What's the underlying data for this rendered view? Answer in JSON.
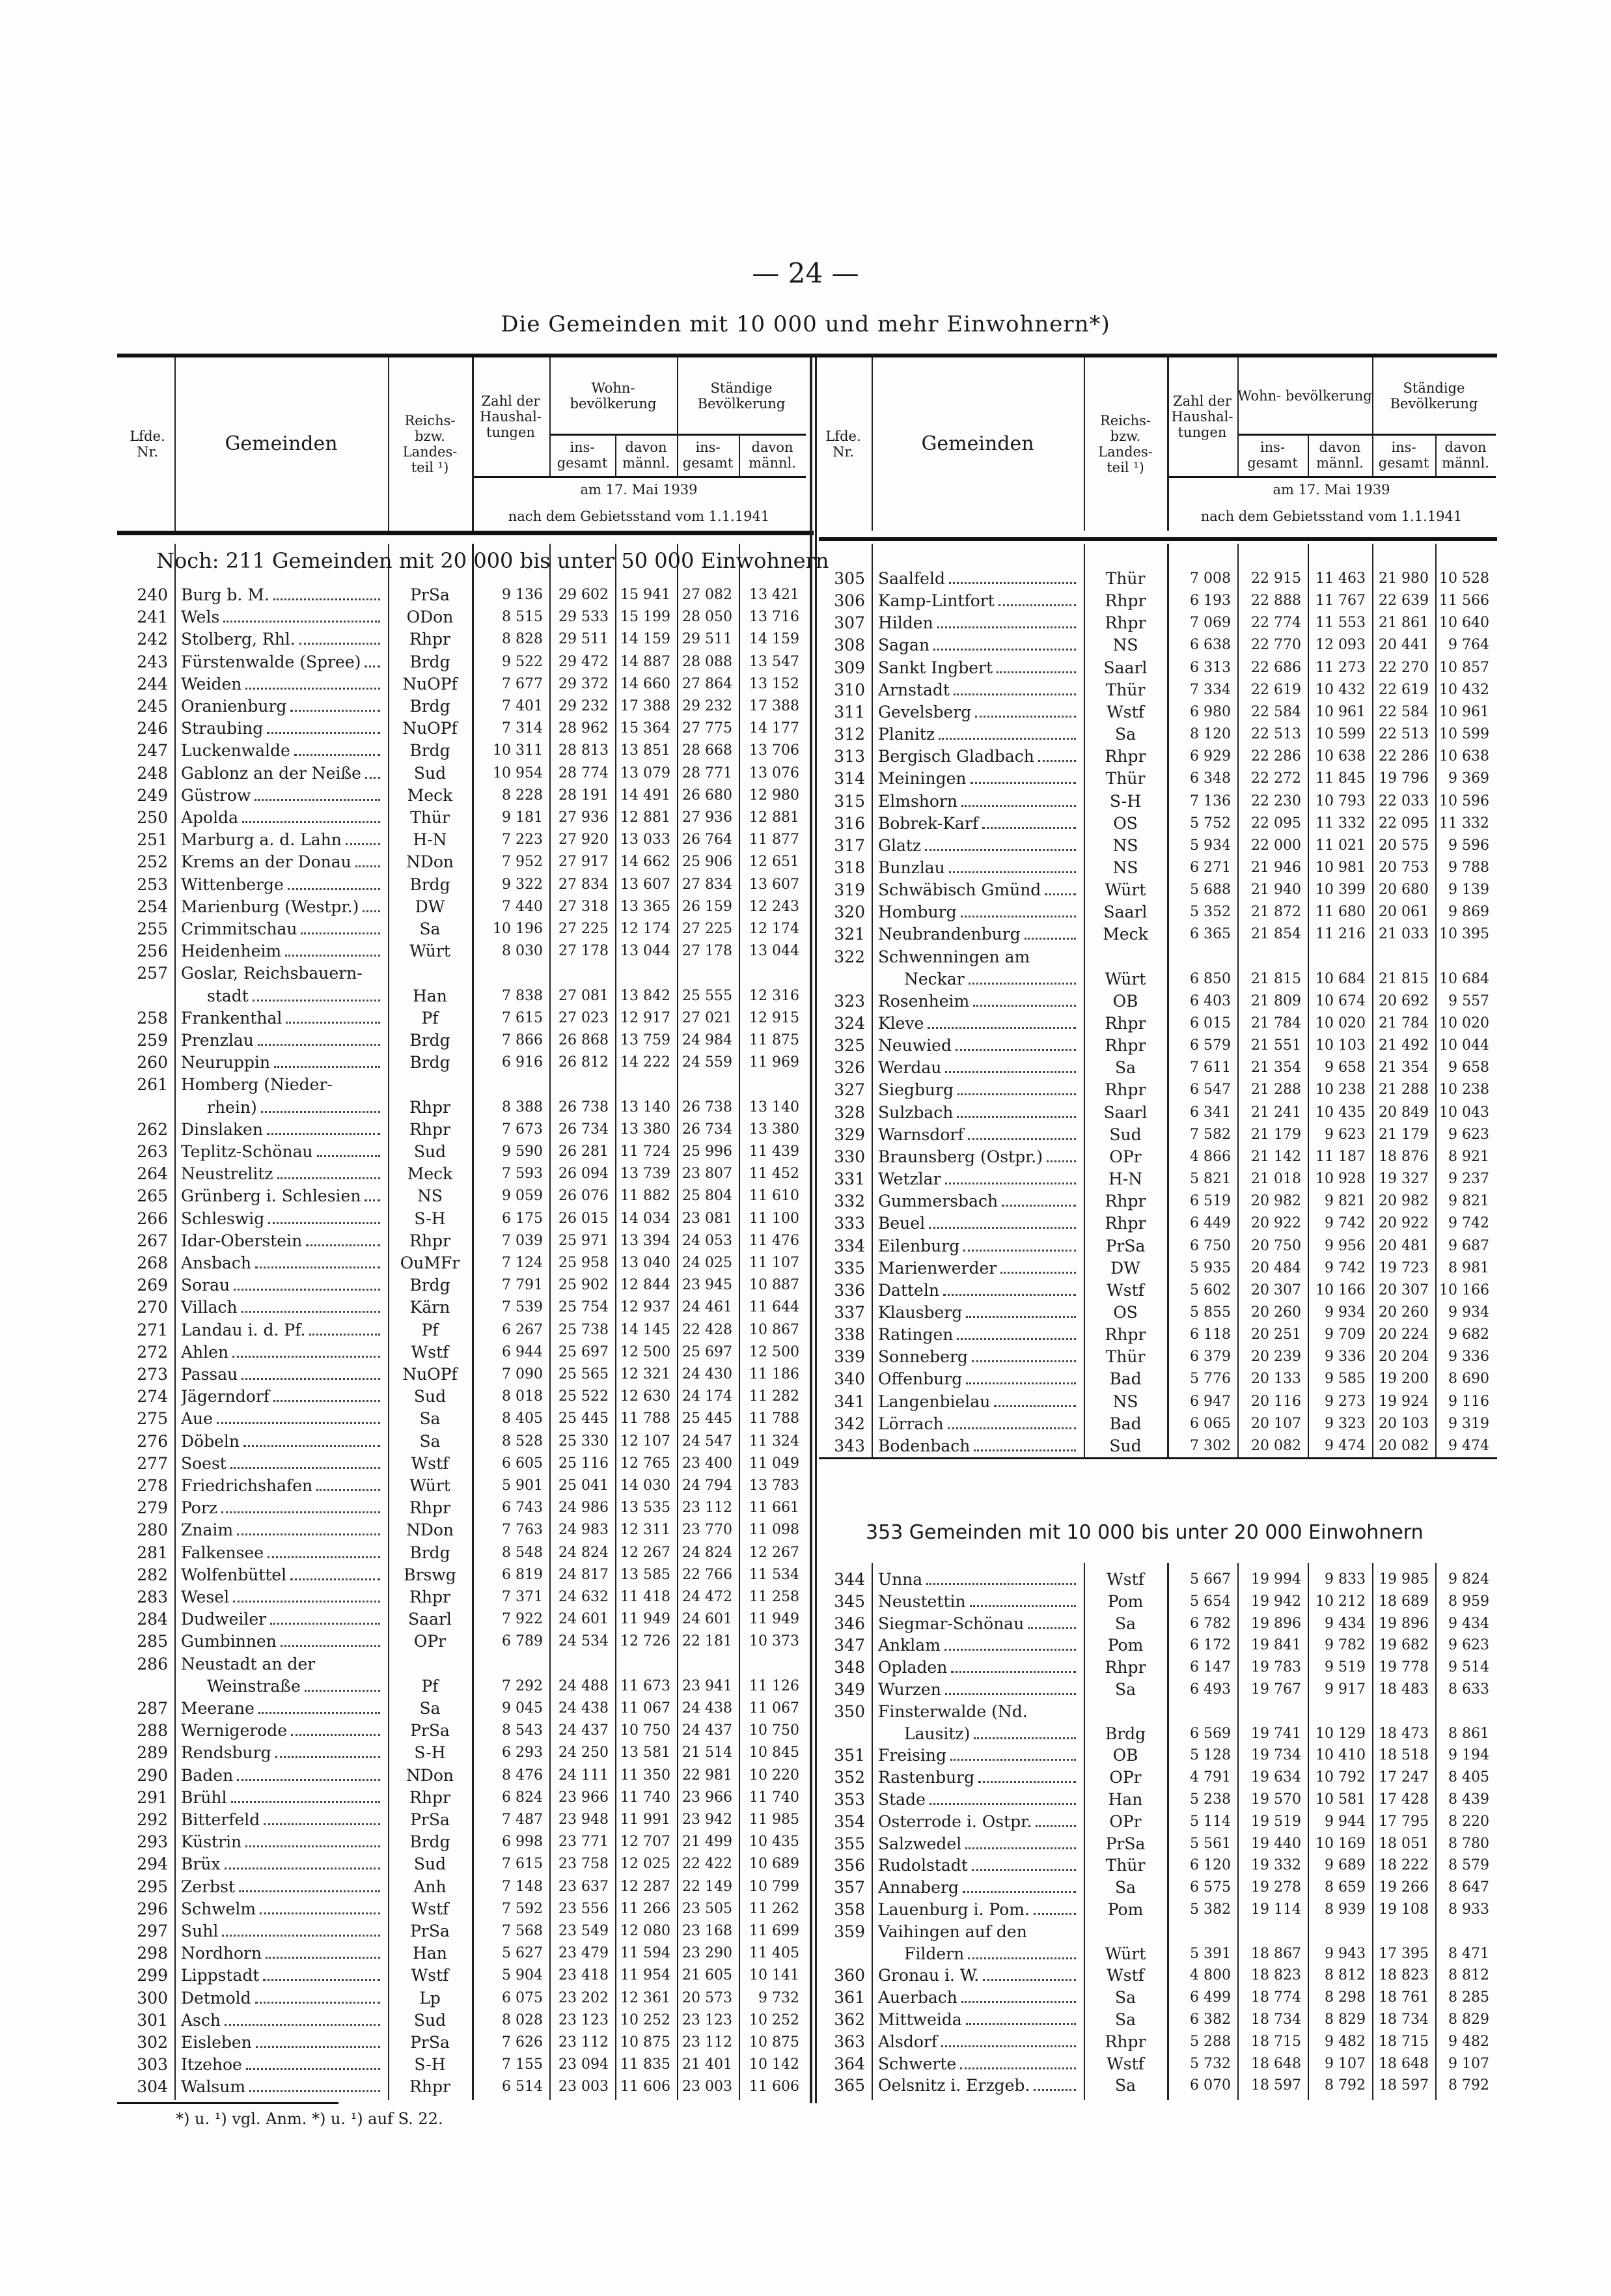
{
  "page_number": "— 24 —",
  "title": "Die Gemeinden mit 10 000 und mehr Einwohnern*)",
  "header": {
    "nr": "Lfde. Nr.",
    "gemeinden": "Gemeinden",
    "land": "Reichs- bzw. Landes- teil ¹)",
    "haushalt": "Zahl der Haushal- tungen",
    "wohn": "Wohn- bevölkerung",
    "staendig": "Ständige Bevölkerung",
    "insgesamt": "ins- gesamt",
    "maennl": "davon männl.",
    "date1": "am 17. Mai 1939",
    "date2": "nach dem Gebietsstand vom 1.1.1941"
  },
  "sections": {
    "s1": "Noch: 211 Gemeinden mit 20 000 bis unter 50 000 Einwohnern",
    "s2": "353 Gemeinden mit 10 000 bis unter 20 000 Einwohnern"
  },
  "left_rows": [
    [
      "240",
      "Burg b. M.",
      "PrSa",
      "9 136",
      "29 602",
      "15 941",
      "27 082",
      "13 421"
    ],
    [
      "241",
      "Wels",
      "ODon",
      "8 515",
      "29 533",
      "15 199",
      "28 050",
      "13 716"
    ],
    [
      "242",
      "Stolberg, Rhl.",
      "Rhpr",
      "8 828",
      "29 511",
      "14 159",
      "29 511",
      "14 159"
    ],
    [
      "243",
      "Fürstenwalde (Spree)",
      "Brdg",
      "9 522",
      "29 472",
      "14 887",
      "28 088",
      "13 547"
    ],
    [
      "244",
      "Weiden",
      "NuOPf",
      "7 677",
      "29 372",
      "14 660",
      "27 864",
      "13 152"
    ],
    [
      "245",
      "Oranienburg",
      "Brdg",
      "7 401",
      "29 232",
      "17 388",
      "29 232",
      "17 388"
    ],
    [
      "246",
      "Straubing",
      "NuOPf",
      "7 314",
      "28 962",
      "15 364",
      "27 775",
      "14 177"
    ],
    [
      "247",
      "Luckenwalde",
      "Brdg",
      "10 311",
      "28 813",
      "13 851",
      "28 668",
      "13 706"
    ],
    [
      "248",
      "Gablonz an der Neiße",
      "Sud",
      "10 954",
      "28 774",
      "13 079",
      "28 771",
      "13 076"
    ],
    [
      "249",
      "Güstrow",
      "Meck",
      "8 228",
      "28 191",
      "14 491",
      "26 680",
      "12 980"
    ],
    [
      "250",
      "Apolda",
      "Thür",
      "9 181",
      "27 936",
      "12 881",
      "27 936",
      "12 881"
    ],
    [
      "251",
      "Marburg a. d. Lahn",
      "H-N",
      "7 223",
      "27 920",
      "13 033",
      "26 764",
      "11 877"
    ],
    [
      "252",
      "Krems an der Donau",
      "NDon",
      "7 952",
      "27 917",
      "14 662",
      "25 906",
      "12 651"
    ],
    [
      "253",
      "Wittenberge",
      "Brdg",
      "9 322",
      "27 834",
      "13 607",
      "27 834",
      "13 607"
    ],
    [
      "254",
      "Marienburg (Westpr.)",
      "DW",
      "7 440",
      "27 318",
      "13 365",
      "26 159",
      "12 243"
    ],
    [
      "255",
      "Crimmitschau",
      "Sa",
      "10 196",
      "27 225",
      "12 174",
      "27 225",
      "12 174"
    ],
    [
      "256",
      "Heidenheim",
      "Würt",
      "8 030",
      "27 178",
      "13 044",
      "27 178",
      "13 044"
    ],
    [
      "257",
      [
        "Goslar, Reichsbauern-",
        "stadt"
      ],
      "Han",
      "7 838",
      "27 081",
      "13 842",
      "25 555",
      "12 316"
    ],
    [
      "258",
      "Frankenthal",
      "Pf",
      "7 615",
      "27 023",
      "12 917",
      "27 021",
      "12 915"
    ],
    [
      "259",
      "Prenzlau",
      "Brdg",
      "7 866",
      "26 868",
      "13 759",
      "24 984",
      "11 875"
    ],
    [
      "260",
      "Neuruppin",
      "Brdg",
      "6 916",
      "26 812",
      "14 222",
      "24 559",
      "11 969"
    ],
    [
      "261",
      [
        "Homberg (Nieder-",
        "rhein)"
      ],
      "Rhpr",
      "8 388",
      "26 738",
      "13 140",
      "26 738",
      "13 140"
    ],
    [
      "262",
      "Dinslaken",
      "Rhpr",
      "7 673",
      "26 734",
      "13 380",
      "26 734",
      "13 380"
    ],
    [
      "263",
      "Teplitz-Schönau",
      "Sud",
      "9 590",
      "26 281",
      "11 724",
      "25 996",
      "11 439"
    ],
    [
      "264",
      "Neustrelitz",
      "Meck",
      "7 593",
      "26 094",
      "13 739",
      "23 807",
      "11 452"
    ],
    [
      "265",
      "Grünberg i. Schlesien",
      "NS",
      "9 059",
      "26 076",
      "11 882",
      "25 804",
      "11 610"
    ],
    [
      "266",
      "Schleswig",
      "S-H",
      "6 175",
      "26 015",
      "14 034",
      "23 081",
      "11 100"
    ],
    [
      "267",
      "Idar-Oberstein",
      "Rhpr",
      "7 039",
      "25 971",
      "13 394",
      "24 053",
      "11 476"
    ],
    [
      "268",
      "Ansbach",
      "OuMFr",
      "7 124",
      "25 958",
      "13 040",
      "24 025",
      "11 107"
    ],
    [
      "269",
      "Sorau",
      "Brdg",
      "7 791",
      "25 902",
      "12 844",
      "23 945",
      "10 887"
    ],
    [
      "270",
      "Villach",
      "Kärn",
      "7 539",
      "25 754",
      "12 937",
      "24 461",
      "11 644"
    ],
    [
      "271",
      "Landau i. d. Pf.",
      "Pf",
      "6 267",
      "25 738",
      "14 145",
      "22 428",
      "10 867"
    ],
    [
      "272",
      "Ahlen",
      "Wstf",
      "6 944",
      "25 697",
      "12 500",
      "25 697",
      "12 500"
    ],
    [
      "273",
      "Passau",
      "NuOPf",
      "7 090",
      "25 565",
      "12 321",
      "24 430",
      "11 186"
    ],
    [
      "274",
      "Jägerndorf",
      "Sud",
      "8 018",
      "25 522",
      "12 630",
      "24 174",
      "11 282"
    ],
    [
      "275",
      "Aue",
      "Sa",
      "8 405",
      "25 445",
      "11 788",
      "25 445",
      "11 788"
    ],
    [
      "276",
      "Döbeln",
      "Sa",
      "8 528",
      "25 330",
      "12 107",
      "24 547",
      "11 324"
    ],
    [
      "277",
      "Soest",
      "Wstf",
      "6 605",
      "25 116",
      "12 765",
      "23 400",
      "11 049"
    ],
    [
      "278",
      "Friedrichshafen",
      "Würt",
      "5 901",
      "25 041",
      "14 030",
      "24 794",
      "13 783"
    ],
    [
      "279",
      "Porz",
      "Rhpr",
      "6 743",
      "24 986",
      "13 535",
      "23 112",
      "11 661"
    ],
    [
      "280",
      "Znaim",
      "NDon",
      "7 763",
      "24 983",
      "12 311",
      "23 770",
      "11 098"
    ],
    [
      "281",
      "Falkensee",
      "Brdg",
      "8 548",
      "24 824",
      "12 267",
      "24 824",
      "12 267"
    ],
    [
      "282",
      "Wolfenbüttel",
      "Brswg",
      "6 819",
      "24 817",
      "13 585",
      "22 766",
      "11 534"
    ],
    [
      "283",
      "Wesel",
      "Rhpr",
      "7 371",
      "24 632",
      "11 418",
      "24 472",
      "11 258"
    ],
    [
      "284",
      "Dudweiler",
      "Saarl",
      "7 922",
      "24 601",
      "11 949",
      "24 601",
      "11 949"
    ],
    [
      "285",
      "Gumbinnen",
      "OPr",
      "6 789",
      "24 534",
      "12 726",
      "22 181",
      "10 373"
    ],
    [
      "286",
      [
        "Neustadt an der",
        "Weinstraße"
      ],
      "Pf",
      "7 292",
      "24 488",
      "11 673",
      "23 941",
      "11 126"
    ],
    [
      "287",
      "Meerane",
      "Sa",
      "9 045",
      "24 438",
      "11 067",
      "24 438",
      "11 067"
    ],
    [
      "288",
      "Wernigerode",
      "PrSa",
      "8 543",
      "24 437",
      "10 750",
      "24 437",
      "10 750"
    ],
    [
      "289",
      "Rendsburg",
      "S-H",
      "6 293",
      "24 250",
      "13 581",
      "21 514",
      "10 845"
    ],
    [
      "290",
      "Baden",
      "NDon",
      "8 476",
      "24 111",
      "11 350",
      "22 981",
      "10 220"
    ],
    [
      "291",
      "Brühl",
      "Rhpr",
      "6 824",
      "23 966",
      "11 740",
      "23 966",
      "11 740"
    ],
    [
      "292",
      "Bitterfeld",
      "PrSa",
      "7 487",
      "23 948",
      "11 991",
      "23 942",
      "11 985"
    ],
    [
      "293",
      "Küstrin",
      "Brdg",
      "6 998",
      "23 771",
      "12 707",
      "21 499",
      "10 435"
    ],
    [
      "294",
      "Brüx",
      "Sud",
      "7 615",
      "23 758",
      "12 025",
      "22 422",
      "10 689"
    ],
    [
      "295",
      "Zerbst",
      "Anh",
      "7 148",
      "23 637",
      "12 287",
      "22 149",
      "10 799"
    ],
    [
      "296",
      "Schwelm",
      "Wstf",
      "7 592",
      "23 556",
      "11 266",
      "23 505",
      "11 262"
    ],
    [
      "297",
      "Suhl",
      "PrSa",
      "7 568",
      "23 549",
      "12 080",
      "23 168",
      "11 699"
    ],
    [
      "298",
      "Nordhorn",
      "Han",
      "5 627",
      "23 479",
      "11 594",
      "23 290",
      "11 405"
    ],
    [
      "299",
      "Lippstadt",
      "Wstf",
      "5 904",
      "23 418",
      "11 954",
      "21 605",
      "10 141"
    ],
    [
      "300",
      "Detmold",
      "Lp",
      "6 075",
      "23 202",
      "12 361",
      "20 573",
      "9 732"
    ],
    [
      "301",
      "Asch",
      "Sud",
      "8 028",
      "23 123",
      "10 252",
      "23 123",
      "10 252"
    ],
    [
      "302",
      "Eisleben",
      "PrSa",
      "7 626",
      "23 112",
      "10 875",
      "23 112",
      "10 875"
    ],
    [
      "303",
      "Itzehoe",
      "S-H",
      "7 155",
      "23 094",
      "11 835",
      "21 401",
      "10 142"
    ],
    [
      "304",
      "Walsum",
      "Rhpr",
      "6 514",
      "23 003",
      "11 606",
      "23 003",
      "11 606"
    ]
  ],
  "right_rows_1": [
    [
      "305",
      "Saalfeld",
      "Thür",
      "7 008",
      "22 915",
      "11 463",
      "21 980",
      "10 528"
    ],
    [
      "306",
      "Kamp-Lintfort",
      "Rhpr",
      "6 193",
      "22 888",
      "11 767",
      "22 639",
      "11 566"
    ],
    [
      "307",
      "Hilden",
      "Rhpr",
      "7 069",
      "22 774",
      "11 553",
      "21 861",
      "10 640"
    ],
    [
      "308",
      "Sagan",
      "NS",
      "6 638",
      "22 770",
      "12 093",
      "20 441",
      "9 764"
    ],
    [
      "309",
      "Sankt Ingbert",
      "Saarl",
      "6 313",
      "22 686",
      "11 273",
      "22 270",
      "10 857"
    ],
    [
      "310",
      "Arnstadt",
      "Thür",
      "7 334",
      "22 619",
      "10 432",
      "22 619",
      "10 432"
    ],
    [
      "311",
      "Gevelsberg",
      "Wstf",
      "6 980",
      "22 584",
      "10 961",
      "22 584",
      "10 961"
    ],
    [
      "312",
      "Planitz",
      "Sa",
      "8 120",
      "22 513",
      "10 599",
      "22 513",
      "10 599"
    ],
    [
      "313",
      "Bergisch Gladbach",
      "Rhpr",
      "6 929",
      "22 286",
      "10 638",
      "22 286",
      "10 638"
    ],
    [
      "314",
      "Meiningen",
      "Thür",
      "6 348",
      "22 272",
      "11 845",
      "19 796",
      "9 369"
    ],
    [
      "315",
      "Elmshorn",
      "S-H",
      "7 136",
      "22 230",
      "10 793",
      "22 033",
      "10 596"
    ],
    [
      "316",
      "Bobrek-Karf",
      "OS",
      "5 752",
      "22 095",
      "11 332",
      "22 095",
      "11 332"
    ],
    [
      "317",
      "Glatz",
      "NS",
      "5 934",
      "22 000",
      "11 021",
      "20 575",
      "9 596"
    ],
    [
      "318",
      "Bunzlau",
      "NS",
      "6 271",
      "21 946",
      "10 981",
      "20 753",
      "9 788"
    ],
    [
      "319",
      "Schwäbisch Gmünd",
      "Würt",
      "5 688",
      "21 940",
      "10 399",
      "20 680",
      "9 139"
    ],
    [
      "320",
      "Homburg",
      "Saarl",
      "5 352",
      "21 872",
      "11 680",
      "20 061",
      "9 869"
    ],
    [
      "321",
      "Neubrandenburg",
      "Meck",
      "6 365",
      "21 854",
      "11 216",
      "21 033",
      "10 395"
    ],
    [
      "322",
      [
        "Schwenningen am",
        "Neckar"
      ],
      "Würt",
      "6 850",
      "21 815",
      "10 684",
      "21 815",
      "10 684"
    ],
    [
      "323",
      "Rosenheim",
      "OB",
      "6 403",
      "21 809",
      "10 674",
      "20 692",
      "9 557"
    ],
    [
      "324",
      "Kleve",
      "Rhpr",
      "6 015",
      "21 784",
      "10 020",
      "21 784",
      "10 020"
    ],
    [
      "325",
      "Neuwied",
      "Rhpr",
      "6 579",
      "21 551",
      "10 103",
      "21 492",
      "10 044"
    ],
    [
      "326",
      "Werdau",
      "Sa",
      "7 611",
      "21 354",
      "9 658",
      "21 354",
      "9 658"
    ],
    [
      "327",
      "Siegburg",
      "Rhpr",
      "6 547",
      "21 288",
      "10 238",
      "21 288",
      "10 238"
    ],
    [
      "328",
      "Sulzbach",
      "Saarl",
      "6 341",
      "21 241",
      "10 435",
      "20 849",
      "10 043"
    ],
    [
      "329",
      "Warnsdorf",
      "Sud",
      "7 582",
      "21 179",
      "9 623",
      "21 179",
      "9 623"
    ],
    [
      "330",
      "Braunsberg (Ostpr.)",
      "OPr",
      "4 866",
      "21 142",
      "11 187",
      "18 876",
      "8 921"
    ],
    [
      "331",
      "Wetzlar",
      "H-N",
      "5 821",
      "21 018",
      "10 928",
      "19 327",
      "9 237"
    ],
    [
      "332",
      "Gummersbach",
      "Rhpr",
      "6 519",
      "20 982",
      "9 821",
      "20 982",
      "9 821"
    ],
    [
      "333",
      "Beuel",
      "Rhpr",
      "6 449",
      "20 922",
      "9 742",
      "20 922",
      "9 742"
    ],
    [
      "334",
      "Eilenburg",
      "PrSa",
      "6 750",
      "20 750",
      "9 956",
      "20 481",
      "9 687"
    ],
    [
      "335",
      "Marienwerder",
      "DW",
      "5 935",
      "20 484",
      "9 742",
      "19 723",
      "8 981"
    ],
    [
      "336",
      "Datteln",
      "Wstf",
      "5 602",
      "20 307",
      "10 166",
      "20 307",
      "10 166"
    ],
    [
      "337",
      "Klausberg",
      "OS",
      "5 855",
      "20 260",
      "9 934",
      "20 260",
      "9 934"
    ],
    [
      "338",
      "Ratingen",
      "Rhpr",
      "6 118",
      "20 251",
      "9 709",
      "20 224",
      "9 682"
    ],
    [
      "339",
      "Sonneberg",
      "Thür",
      "6 379",
      "20 239",
      "9 336",
      "20 204",
      "9 336"
    ],
    [
      "340",
      "Offenburg",
      "Bad",
      "5 776",
      "20 133",
      "9 585",
      "19 200",
      "8 690"
    ],
    [
      "341",
      "Langenbielau",
      "NS",
      "6 947",
      "20 116",
      "9 273",
      "19 924",
      "9 116"
    ],
    [
      "342",
      "Lörrach",
      "Bad",
      "6 065",
      "20 107",
      "9 323",
      "20 103",
      "9 319"
    ],
    [
      "343",
      "Bodenbach",
      "Sud",
      "7 302",
      "20 082",
      "9 474",
      "20 082",
      "9 474"
    ]
  ],
  "right_rows_2": [
    [
      "344",
      "Unna",
      "Wstf",
      "5 667",
      "19 994",
      "9 833",
      "19 985",
      "9 824"
    ],
    [
      "345",
      "Neustettin",
      "Pom",
      "5 654",
      "19 942",
      "10 212",
      "18 689",
      "8 959"
    ],
    [
      "346",
      "Siegmar-Schönau",
      "Sa",
      "6 782",
      "19 896",
      "9 434",
      "19 896",
      "9 434"
    ],
    [
      "347",
      "Anklam",
      "Pom",
      "6 172",
      "19 841",
      "9 782",
      "19 682",
      "9 623"
    ],
    [
      "348",
      "Opladen",
      "Rhpr",
      "6 147",
      "19 783",
      "9 519",
      "19 778",
      "9 514"
    ],
    [
      "349",
      "Wurzen",
      "Sa",
      "6 493",
      "19 767",
      "9 917",
      "18 483",
      "8 633"
    ],
    [
      "350",
      [
        "Finsterwalde (Nd.",
        "Lausitz)"
      ],
      "Brdg",
      "6 569",
      "19 741",
      "10 129",
      "18 473",
      "8 861"
    ],
    [
      "351",
      "Freising",
      "OB",
      "5 128",
      "19 734",
      "10 410",
      "18 518",
      "9 194"
    ],
    [
      "352",
      "Rastenburg",
      "OPr",
      "4 791",
      "19 634",
      "10 792",
      "17 247",
      "8 405"
    ],
    [
      "353",
      "Stade",
      "Han",
      "5 238",
      "19 570",
      "10 581",
      "17 428",
      "8 439"
    ],
    [
      "354",
      "Osterrode i. Ostpr.",
      "OPr",
      "5 114",
      "19 519",
      "9 944",
      "17 795",
      "8 220"
    ],
    [
      "355",
      "Salzwedel",
      "PrSa",
      "5 561",
      "19 440",
      "10 169",
      "18 051",
      "8 780"
    ],
    [
      "356",
      "Rudolstadt",
      "Thür",
      "6 120",
      "19 332",
      "9 689",
      "18 222",
      "8 579"
    ],
    [
      "357",
      "Annaberg",
      "Sa",
      "6 575",
      "19 278",
      "8 659",
      "19 266",
      "8 647"
    ],
    [
      "358",
      "Lauenburg i. Pom.",
      "Pom",
      "5 382",
      "19 114",
      "8 939",
      "19 108",
      "8 933"
    ],
    [
      "359",
      [
        "Vaihingen auf den",
        "Fildern"
      ],
      "Würt",
      "5 391",
      "18 867",
      "9 943",
      "17 395",
      "8 471"
    ],
    [
      "360",
      "Gronau i. W.",
      "Wstf",
      "4 800",
      "18 823",
      "8 812",
      "18 823",
      "8 812"
    ],
    [
      "361",
      "Auerbach",
      "Sa",
      "6 499",
      "18 774",
      "8 298",
      "18 761",
      "8 285"
    ],
    [
      "362",
      "Mittweida",
      "Sa",
      "6 382",
      "18 734",
      "8 829",
      "18 734",
      "8 829"
    ],
    [
      "363",
      "Alsdorf",
      "Rhpr",
      "5 288",
      "18 715",
      "9 482",
      "18 715",
      "9 482"
    ],
    [
      "364",
      "Schwerte",
      "Wstf",
      "5 732",
      "18 648",
      "9 107",
      "18 648",
      "9 107"
    ],
    [
      "365",
      "Oelsnitz i. Erzgeb.",
      "Sa",
      "6 070",
      "18 597",
      "8 792",
      "18 597",
      "8 792"
    ]
  ],
  "footnote": "*) u. ¹) vgl. Anm. *) u. ¹) auf S. 22."
}
